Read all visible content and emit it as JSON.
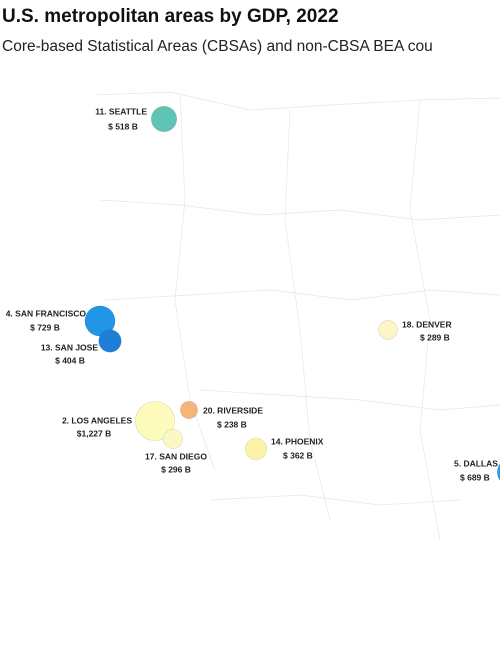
{
  "chart_data": {
    "type": "bubble-map",
    "title": "U.S. metropolitan areas by GDP, 2022",
    "subtitle": "Core-based Statistical Areas (CBSAs) and non-CBSA BEA cou",
    "areas": [
      {
        "name": "11. SEATTLE",
        "value": 518,
        "value_label": "$ 518 B",
        "color": "#5fc4b5"
      },
      {
        "name": "4. SAN FRANCISCO",
        "value": 729,
        "value_label": "$ 729 B",
        "color": "#2196e6"
      },
      {
        "name": "13. SAN JOSE",
        "value": 404,
        "value_label": "$ 404 B",
        "color": "#1f7fd6"
      },
      {
        "name": "2. LOS ANGELES",
        "value": 1227,
        "value_label": "$1,227 B",
        "color": "#fdfbbb"
      },
      {
        "name": "20. RIVERSIDE",
        "value": 238,
        "value_label": "$ 238 B",
        "color": "#f6b37a"
      },
      {
        "name": "17. SAN DIEGO",
        "value": 296,
        "value_label": "$ 296 B",
        "color": "#fcf8c4"
      },
      {
        "name": "14. PHOENIX",
        "value": 362,
        "value_label": "$ 362 B",
        "color": "#fdf3a6"
      },
      {
        "name": "18. DENVER",
        "value": 289,
        "value_label": "$ 289 B",
        "color": "#fdf6c6"
      },
      {
        "name": "5. DALLAS",
        "value": 689,
        "value_label": "$ 689 B",
        "color": "#2a9ae4"
      }
    ]
  }
}
